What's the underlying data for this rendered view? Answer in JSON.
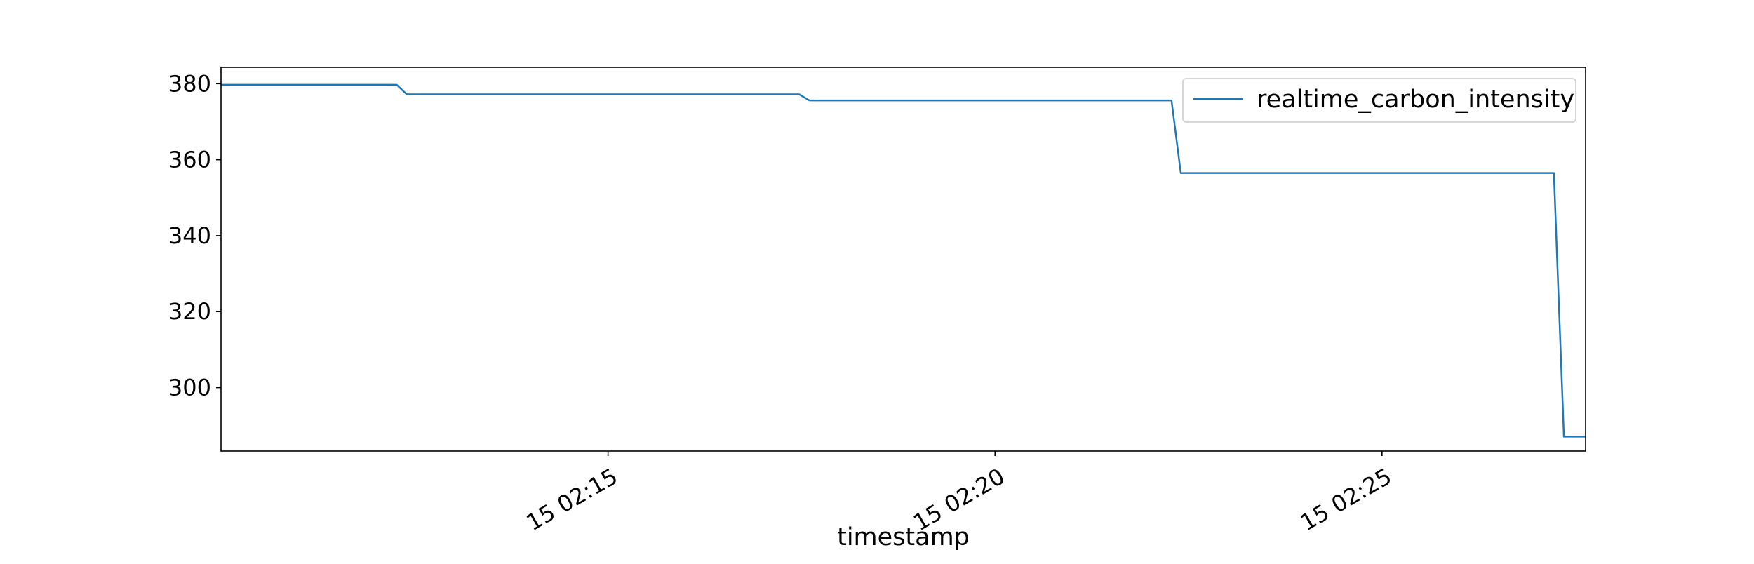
{
  "chart_data": {
    "type": "line",
    "title": "",
    "xlabel": "timestamp",
    "ylabel": "",
    "x_tick_labels": [
      "15 02:15",
      "15 02:20",
      "15 02:25"
    ],
    "x_tick_values": [
      15,
      20,
      25
    ],
    "y_tick_labels": [
      "300",
      "320",
      "340",
      "360",
      "380"
    ],
    "y_tick_values": [
      300,
      320,
      340,
      360,
      380
    ],
    "xlim": [
      10.0,
      27.63
    ],
    "ylim": [
      283.3,
      384.3
    ],
    "x_unit": "minutes past 02:00",
    "grid": false,
    "legend": "upper right",
    "series": [
      {
        "name": "realtime_carbon_intensity",
        "color": "#1f77b4",
        "x": [
          10.0,
          12.27,
          12.4,
          17.47,
          17.6,
          22.28,
          22.4,
          27.22,
          27.35,
          27.63
        ],
        "y": [
          379.7,
          379.7,
          377.2,
          377.2,
          375.6,
          375.6,
          356.5,
          356.5,
          287.1,
          287.1
        ]
      }
    ]
  }
}
